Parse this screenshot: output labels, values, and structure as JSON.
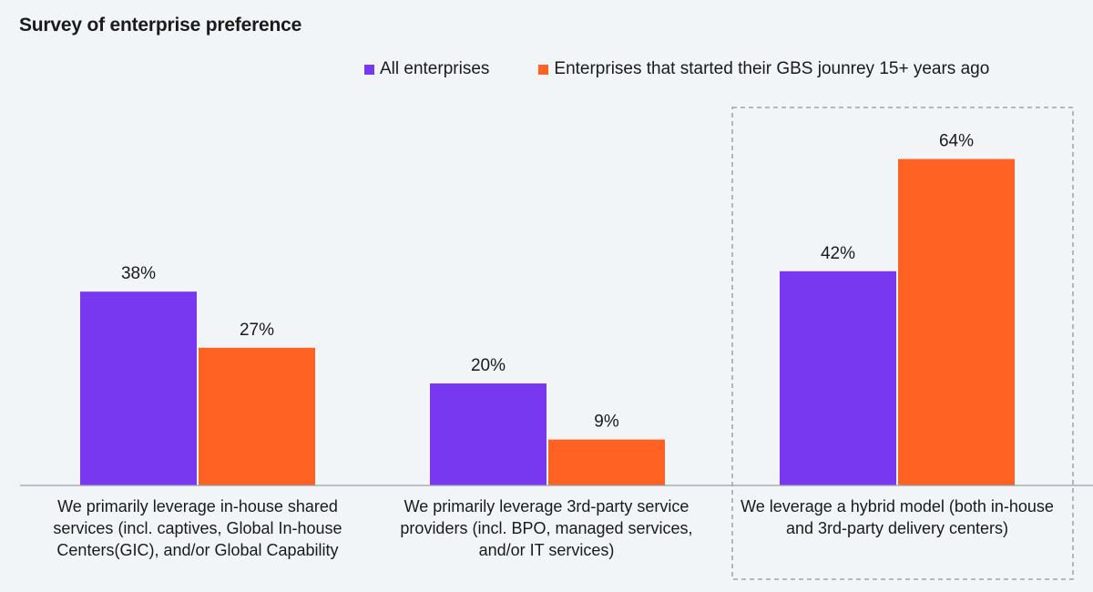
{
  "chart_data": {
    "type": "bar",
    "title": "Survey of enterprise preference",
    "xlabel": "",
    "ylabel": "",
    "ylim": [
      0,
      70
    ],
    "grid": false,
    "legend_position": "top",
    "categories": [
      "We primarily leverage in-house shared services (incl. captives, Global In-house Centers(GIC), and/or Global Capability",
      "We primarily leverage 3rd-party service providers (incl. BPO, managed services, and/or IT services)",
      "We leverage a hybrid model (both in-house and 3rd-party delivery centers)"
    ],
    "series": [
      {
        "name": "All enterprises",
        "color": "#7838f0",
        "values": [
          38,
          20,
          42
        ],
        "labels": [
          "38%",
          "20%",
          "42%"
        ]
      },
      {
        "name": "Enterprises that started their GBS jounrey 15+ years ago",
        "color": "#ff6222",
        "values": [
          27,
          9,
          64
        ],
        "labels": [
          "27%",
          "9%",
          "64%"
        ]
      }
    ],
    "highlighted_category": 2
  },
  "colors": {
    "background": "#f2f5f8",
    "axis": "#9aa0a6",
    "highlight_border": "#8a96a3"
  }
}
